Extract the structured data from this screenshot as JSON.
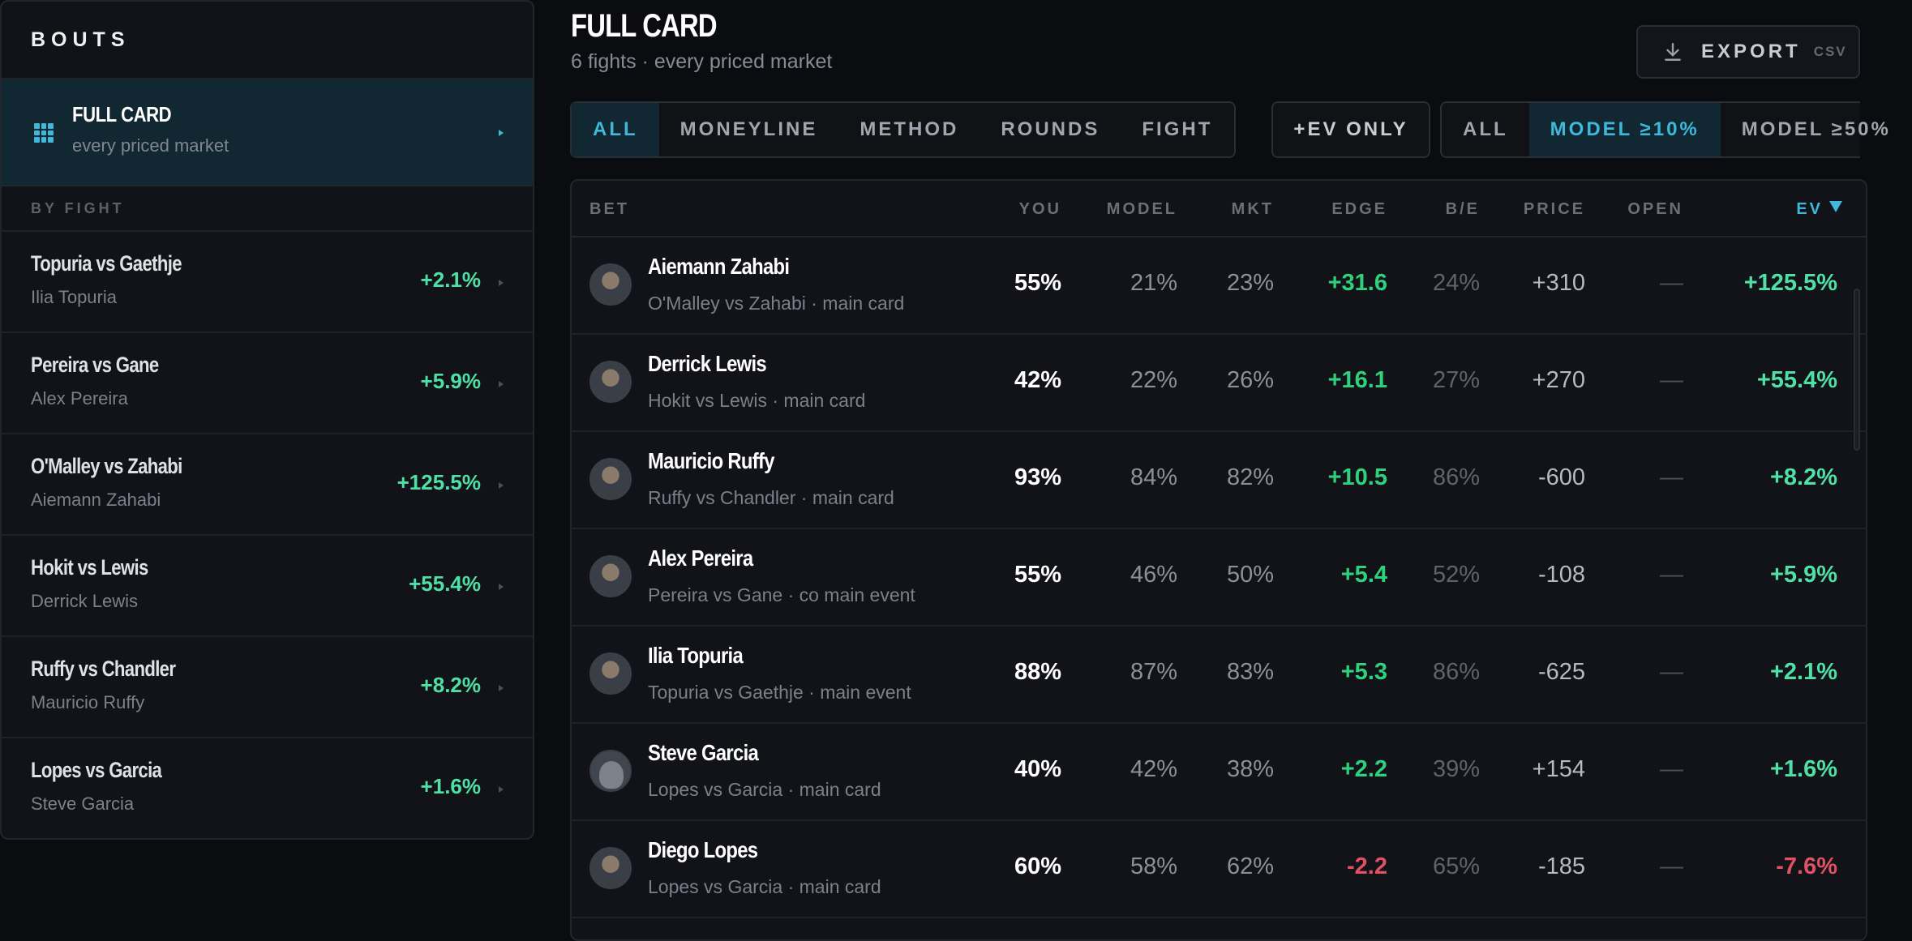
{
  "sidebar": {
    "header": "BOUTS",
    "full_card": {
      "title": "FULL CARD",
      "subtitle": "every priced market"
    },
    "section_label": "BY FIGHT",
    "fights": [
      {
        "name": "Topuria vs Gaethje",
        "fighter": "Ilia Topuria",
        "ev": "+2.1%"
      },
      {
        "name": "Pereira vs Gane",
        "fighter": "Alex Pereira",
        "ev": "+5.9%"
      },
      {
        "name": "O'Malley vs Zahabi",
        "fighter": "Aiemann Zahabi",
        "ev": "+125.5%"
      },
      {
        "name": "Hokit vs Lewis",
        "fighter": "Derrick Lewis",
        "ev": "+55.4%"
      },
      {
        "name": "Ruffy vs Chandler",
        "fighter": "Mauricio Ruffy",
        "ev": "+8.2%"
      },
      {
        "name": "Lopes vs Garcia",
        "fighter": "Steve Garcia",
        "ev": "+1.6%"
      }
    ]
  },
  "header": {
    "title": "FULL CARD",
    "subtitle": "6 fights · every priced market",
    "export_label": "EXPORT",
    "export_format": "CSV"
  },
  "filters": {
    "types": [
      "ALL",
      "MONEYLINE",
      "METHOD",
      "ROUNDS",
      "FIGHT"
    ],
    "types_active": 0,
    "ev_only": "+EV ONLY",
    "model": [
      "ALL",
      "MODEL ≥10%",
      "MODEL ≥50%"
    ],
    "model_active": 1
  },
  "table": {
    "columns": [
      "BET",
      "YOU",
      "MODEL",
      "MKT",
      "EDGE",
      "B/E",
      "PRICE",
      "OPEN",
      "EV"
    ],
    "rows": [
      {
        "name": "Aiemann Zahabi",
        "sub": "O'Malley vs Zahabi · main card",
        "you": "55%",
        "model": "21%",
        "mkt": "23%",
        "edge": "+31.6",
        "be": "24%",
        "price": "+310",
        "open": "—",
        "ev": "+125.5%",
        "positive": true
      },
      {
        "name": "Derrick Lewis",
        "sub": "Hokit vs Lewis · main card",
        "you": "42%",
        "model": "22%",
        "mkt": "26%",
        "edge": "+16.1",
        "be": "27%",
        "price": "+270",
        "open": "—",
        "ev": "+55.4%",
        "positive": true
      },
      {
        "name": "Mauricio Ruffy",
        "sub": "Ruffy vs Chandler · main card",
        "you": "93%",
        "model": "84%",
        "mkt": "82%",
        "edge": "+10.5",
        "be": "86%",
        "price": "-600",
        "open": "—",
        "ev": "+8.2%",
        "positive": true
      },
      {
        "name": "Alex Pereira",
        "sub": "Pereira vs Gane · co main event",
        "you": "55%",
        "model": "46%",
        "mkt": "50%",
        "edge": "+5.4",
        "be": "52%",
        "price": "-108",
        "open": "—",
        "ev": "+5.9%",
        "positive": true
      },
      {
        "name": "Ilia Topuria",
        "sub": "Topuria vs Gaethje · main event",
        "you": "88%",
        "model": "87%",
        "mkt": "83%",
        "edge": "+5.3",
        "be": "86%",
        "price": "-625",
        "open": "—",
        "ev": "+2.1%",
        "positive": true
      },
      {
        "name": "Steve Garcia",
        "sub": "Lopes vs Garcia · main card",
        "you": "40%",
        "model": "42%",
        "mkt": "38%",
        "edge": "+2.2",
        "be": "39%",
        "price": "+154",
        "open": "—",
        "ev": "+1.6%",
        "positive": true,
        "silhouette": true
      },
      {
        "name": "Diego Lopes",
        "sub": "Lopes vs Garcia · main card",
        "you": "60%",
        "model": "58%",
        "mkt": "62%",
        "edge": "-2.2",
        "be": "65%",
        "price": "-185",
        "open": "—",
        "ev": "-7.6%",
        "positive": false
      }
    ]
  },
  "colors": {
    "accent": "#3fb8dc",
    "positive": "#2fd17c",
    "ev_positive": "#4fe0a5",
    "negative": "#e05263"
  }
}
